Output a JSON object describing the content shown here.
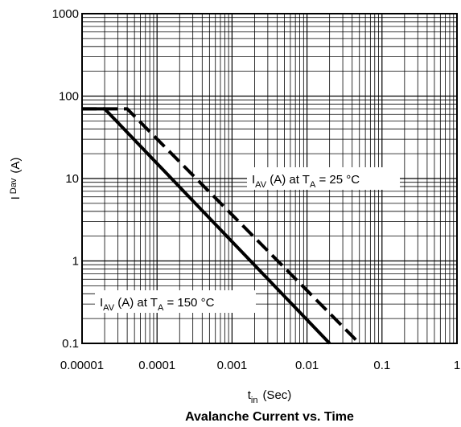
{
  "chart_data": {
    "type": "line",
    "title": "Avalanche Current vs. Time",
    "xlabel": {
      "main": "t",
      "sub": "in",
      "unit": "(Sec)"
    },
    "ylabel": {
      "main": "I",
      "sub": "Dav",
      "unit": "(A)"
    },
    "x_scale": "log",
    "y_scale": "log",
    "xlim": [
      1e-05,
      1
    ],
    "ylim": [
      0.1,
      1000
    ],
    "grid": true,
    "x_ticks": [
      "0.00001",
      "0.0001",
      "0.001",
      "0.01",
      "0.1",
      "1"
    ],
    "y_ticks": [
      "0.1",
      "1",
      "10",
      "100",
      "1000"
    ],
    "series": [
      {
        "style": "solid",
        "x": [
          1e-05,
          2e-05,
          0.02
        ],
        "y": [
          70,
          70,
          0.1
        ]
      },
      {
        "style": "dashed",
        "x": [
          1e-05,
          4e-05,
          0.05
        ],
        "y": [
          70,
          70,
          0.1
        ]
      }
    ],
    "annotations": [
      {
        "text_main": "I",
        "text_sub": "AV",
        "text_mid": " (A) at  T",
        "text_sub2": "A",
        "text_end": " = 25 °C"
      },
      {
        "text_main": "I",
        "text_sub": "AV",
        "text_mid": " (A) at  T",
        "text_sub2": "A",
        "text_end": " = 150 °C"
      }
    ]
  }
}
